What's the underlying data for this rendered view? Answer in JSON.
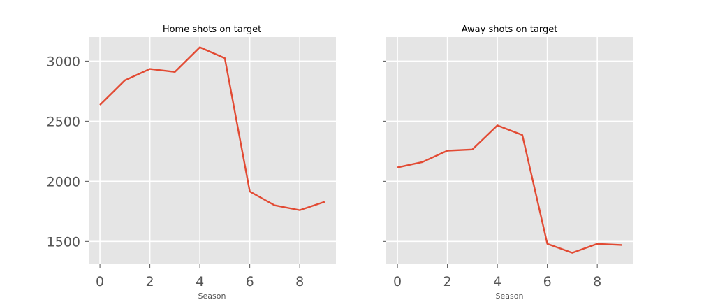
{
  "chart_data": [
    {
      "type": "line",
      "title": "Home shots on target",
      "xlabel": "Season",
      "ylabel": "",
      "x": [
        0,
        1,
        2,
        3,
        4,
        5,
        6,
        7,
        8,
        9
      ],
      "series": [
        {
          "values": [
            2635,
            2840,
            2935,
            2910,
            3115,
            3025,
            1915,
            1800,
            1760,
            1830
          ]
        }
      ],
      "xlim": [
        -0.45,
        9.45
      ],
      "ylim": [
        1310,
        3200
      ],
      "xticks": [
        0,
        2,
        4,
        6,
        8
      ],
      "yticks": [
        1500,
        2000,
        2500,
        3000
      ],
      "grid": true,
      "colors": {
        "line": "#E24A33",
        "background": "#E5E5E5",
        "grid": "#ffffff"
      }
    },
    {
      "type": "line",
      "title": "Away shots on target",
      "xlabel": "Season",
      "ylabel": "",
      "x": [
        0,
        1,
        2,
        3,
        4,
        5,
        6,
        7,
        8,
        9
      ],
      "series": [
        {
          "values": [
            2115,
            2160,
            2255,
            2265,
            2465,
            2385,
            1480,
            1405,
            1480,
            1470
          ]
        }
      ],
      "xlim": [
        -0.45,
        9.45
      ],
      "ylim": [
        1310,
        3200
      ],
      "xticks": [
        0,
        2,
        4,
        6,
        8
      ],
      "yticks": [
        1500,
        2000,
        2500,
        3000
      ],
      "show_ytick_labels": false,
      "grid": true,
      "colors": {
        "line": "#E24A33",
        "background": "#E5E5E5",
        "grid": "#ffffff"
      }
    }
  ]
}
